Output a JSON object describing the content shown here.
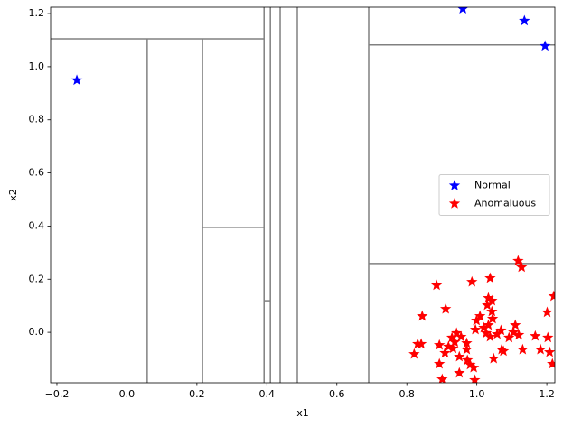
{
  "chart_data": {
    "type": "scatter",
    "marker": "star",
    "xlabel": "x1",
    "ylabel": "x2",
    "xlim": [
      -0.218,
      1.223
    ],
    "ylim": [
      -0.19,
      1.224
    ],
    "xticks": [
      {
        "value": -0.2,
        "label": "−0.2"
      },
      {
        "value": 0,
        "label": "0.0"
      },
      0.2,
      0.4,
      0.6,
      0.8,
      {
        "value": 1,
        "label": "1.0"
      },
      1.2
    ],
    "yticks": [
      {
        "value": 0,
        "label": "0.0"
      },
      0.2,
      0.4,
      0.6,
      0.8,
      {
        "value": 1,
        "label": "1.0"
      },
      1.2
    ],
    "legend": "center right",
    "line_color": "#808080",
    "partition_lines": [
      {
        "x": [
          0.392,
          0.392
        ],
        "y": [
          -0.19,
          1.224
        ]
      },
      {
        "x": [
          -0.218,
          0.392
        ],
        "y": [
          1.105,
          1.105
        ]
      },
      {
        "x": [
          0.058,
          0.058
        ],
        "y": [
          -0.19,
          1.105
        ]
      },
      {
        "x": [
          0.216,
          0.216
        ],
        "y": [
          -0.19,
          1.105
        ]
      },
      {
        "x": [
          0.216,
          0.392
        ],
        "y": [
          0.395,
          0.395
        ]
      },
      {
        "x": [
          0.41,
          0.41
        ],
        "y": [
          -0.19,
          1.224
        ]
      },
      {
        "x": [
          0.392,
          0.41
        ],
        "y": [
          0.119,
          0.119
        ]
      },
      {
        "x": [
          0.438,
          0.438
        ],
        "y": [
          -0.19,
          1.224
        ]
      },
      {
        "x": [
          0.487,
          0.487
        ],
        "y": [
          -0.19,
          1.224
        ]
      },
      {
        "x": [
          0.691,
          0.691
        ],
        "y": [
          -0.19,
          1.224
        ]
      },
      {
        "x": [
          0.691,
          1.223
        ],
        "y": [
          1.082,
          1.082
        ]
      },
      {
        "x": [
          0.691,
          1.223
        ],
        "y": [
          0.259,
          0.259
        ]
      }
    ],
    "series": [
      {
        "name": "Normal",
        "color": "blue",
        "x": [
          -0.143,
          0.96,
          1.136,
          1.195
        ],
        "values": [
          0.949,
          1.218,
          1.173,
          1.078
        ]
      },
      {
        "name": "Anomaluous",
        "color": "red",
        "x": [
          0.821,
          0.831,
          0.844,
          0.841,
          0.885,
          0.911,
          0.929,
          0.942,
          0.937,
          0.95,
          0.955,
          0.971,
          0.986,
          0.991,
          0.996,
          0.999,
          1.009,
          1.03,
          1.038,
          1.043,
          1.043,
          1.045,
          1.027,
          1.033,
          1.038,
          1.048,
          1.069,
          1.071,
          1.076,
          1.092,
          1.105,
          1.11,
          1.12,
          1.118,
          1.128,
          1.131,
          1.167,
          1.182,
          1.201,
          1.203,
          1.208,
          1.216,
          1.22,
          0.909,
          0.901,
          0.893,
          0.932,
          0.95,
          0.971,
          0.981,
          0.973,
          0.893,
          0.919,
          1.02,
          1.058,
          1.033,
          0.994
        ],
        "values": [
          -0.082,
          -0.044,
          0.061,
          -0.044,
          0.177,
          0.088,
          -0.02,
          -0.003,
          -0.037,
          -0.092,
          -0.017,
          -0.041,
          0.19,
          -0.133,
          0.01,
          0.044,
          0.061,
          0.102,
          0.204,
          0.119,
          0.078,
          0.051,
          -0.003,
          0.027,
          -0.017,
          -0.099,
          0.007,
          -0.065,
          -0.071,
          -0.02,
          0.0,
          0.027,
          -0.01,
          0.269,
          0.245,
          -0.065,
          -0.014,
          -0.065,
          0.075,
          -0.02,
          -0.075,
          -0.119,
          0.136,
          -0.078,
          -0.177,
          -0.119,
          -0.061,
          -0.153,
          -0.065,
          -0.122,
          -0.105,
          -0.048,
          -0.054,
          0.017,
          -0.007,
          0.129,
          -0.18
        ]
      }
    ]
  }
}
